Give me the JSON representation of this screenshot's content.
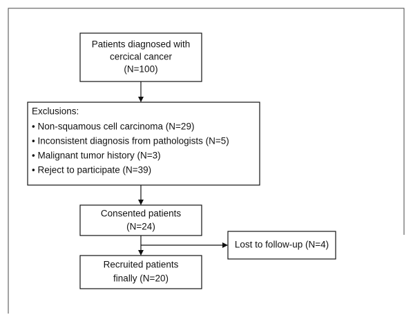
{
  "nodes": [
    {
      "lines": [
        "Patients diagnosed with",
        "cercical cancer",
        "(N=100)"
      ]
    },
    {
      "lines": [
        "Exclusions:",
        "• Non-squamous cell carcinoma (N=29)",
        "• Inconsistent diagnosis from pathologists (N=5)",
        "•  Malignant tumor history (N=3)",
        "• Reject to participate (N=39)"
      ]
    },
    {
      "lines": [
        "Consented patients",
        "(N=24)"
      ]
    },
    {
      "lines": [
        "Lost to follow-up (N=4)"
      ]
    },
    {
      "lines": [
        "Recruited patients",
        "finally (N=20)"
      ]
    }
  ]
}
